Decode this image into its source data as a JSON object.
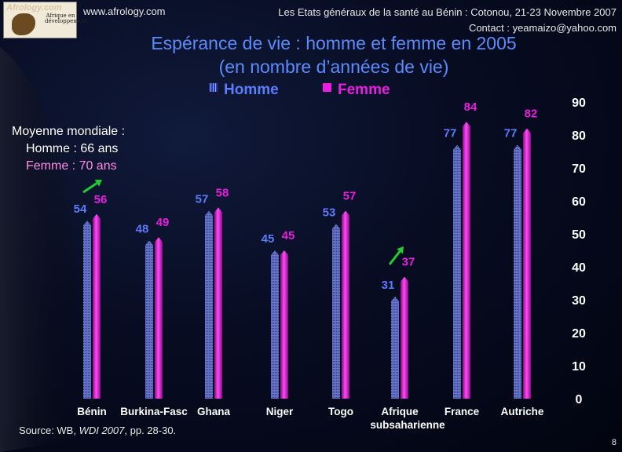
{
  "header": {
    "logo_text": "Afrology.com",
    "logo_sub": "Afrique en développement",
    "url": "www.afrology.com",
    "event_line1": "Les Etats généraux de la santé au Bénin : Cotonou, 21-23 Novembre 2007",
    "event_line2": "Contact : yeamaizo@yahoo.com"
  },
  "title": {
    "line1": "Espérance de vie : homme et femme en 2005",
    "line2": "(en nombre d’années de vie)"
  },
  "legend": {
    "homme": "Homme",
    "femme": "Femme"
  },
  "world_average": {
    "title": "Moyenne mondiale :",
    "homme": "Homme : 66 ans",
    "femme": "Femme : 70 ans"
  },
  "source": {
    "prefix": "Source: WB, ",
    "publication": "WDI 2007",
    "suffix": ", pp. 28-30."
  },
  "page_number": "8",
  "colors": {
    "homme": "#5b7cff",
    "femme": "#e81ee0",
    "title": "#5b8cff",
    "arrow": "#22cc33"
  },
  "chart_data": {
    "type": "bar",
    "title": "Espérance de vie : homme et femme en 2005",
    "ylabel": "",
    "xlabel": "",
    "ylim": [
      0,
      90
    ],
    "yticks": [
      0,
      10,
      20,
      30,
      40,
      50,
      60,
      70,
      80,
      90
    ],
    "categories": [
      "Bénin",
      "Burkina-Fasc",
      "Ghana",
      "Niger",
      "Togo",
      "Afrique subsaharienne",
      "France",
      "Autriche"
    ],
    "category_labels": [
      [
        "Bénin"
      ],
      [
        "Burkina-Fasc"
      ],
      [
        "Ghana"
      ],
      [
        "Niger"
      ],
      [
        "Togo"
      ],
      [
        "Afrique",
        "subsaharienne"
      ],
      [
        "France"
      ],
      [
        "Autriche"
      ]
    ],
    "series": [
      {
        "name": "Homme",
        "values": [
          54,
          48,
          57,
          45,
          53,
          31,
          77,
          77
        ]
      },
      {
        "name": "Femme",
        "values": [
          56,
          49,
          58,
          45,
          57,
          37,
          84,
          82
        ]
      }
    ],
    "annotations": [
      {
        "type": "arrow",
        "category": "Bénin",
        "meaning": "comparaison avec la moyenne mondiale"
      },
      {
        "type": "arrow",
        "category": "Afrique subsaharienne",
        "meaning": "comparaison avec la moyenne mondiale"
      }
    ]
  }
}
